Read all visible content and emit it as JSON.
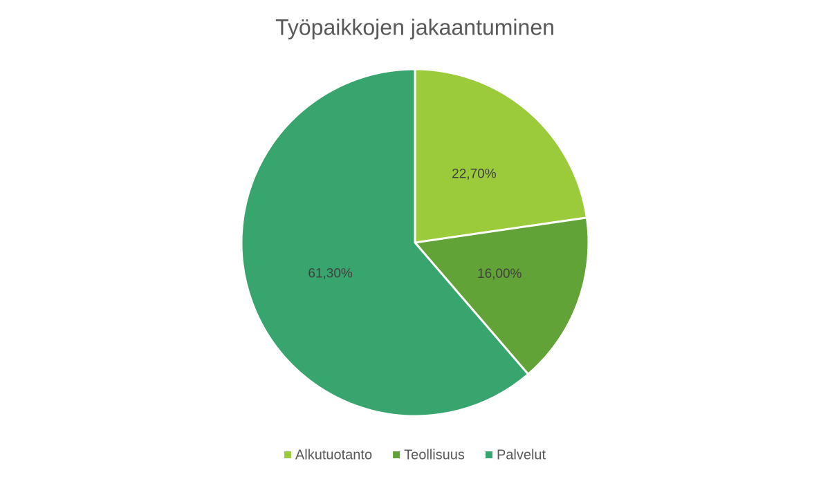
{
  "chart_data": {
    "type": "pie",
    "title": "Työpaikkojen jakaantuminen",
    "categories": [
      "Alkutuotanto",
      "Teollisuus",
      "Palvelut"
    ],
    "values": [
      22.7,
      16.0,
      61.3
    ],
    "value_labels": [
      "22,70%",
      "16,00%",
      "61,30%"
    ],
    "colors": [
      "#9bcb3b",
      "#62a337",
      "#38a56e"
    ],
    "legend": "bottom"
  }
}
